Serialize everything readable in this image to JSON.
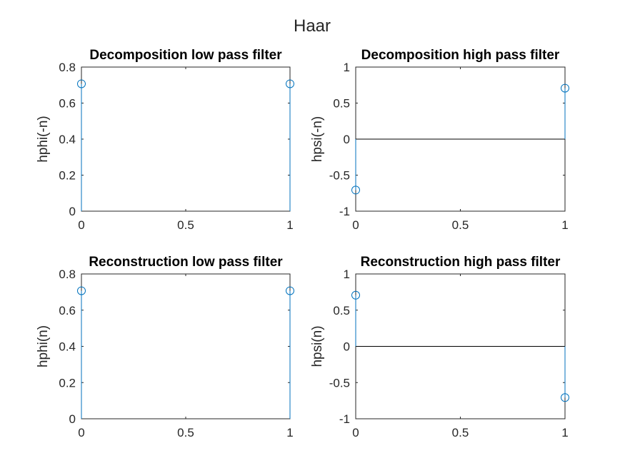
{
  "figure_title": "Haar",
  "colors": {
    "stem": "#0072BD",
    "axes": "#262626",
    "baseline": "#000000"
  },
  "chart_data": [
    {
      "type": "stem",
      "title": "Decomposition low pass filter",
      "xlabel": "",
      "ylabel": "hphi(-n)",
      "xlim": [
        0,
        1
      ],
      "ylim": [
        0,
        0.8
      ],
      "xticks": [
        0,
        0.5,
        1
      ],
      "xtick_labels": [
        "0",
        "0.5",
        "1"
      ],
      "yticks": [
        0,
        0.2,
        0.4,
        0.6,
        0.8
      ],
      "ytick_labels": [
        "0",
        "0.2",
        "0.4",
        "0.6",
        "0.8"
      ],
      "baseline": false,
      "series": [
        {
          "x": [
            0,
            1
          ],
          "values": [
            0.7071,
            0.7071
          ]
        }
      ]
    },
    {
      "type": "stem",
      "title": "Decomposition high pass filter",
      "xlabel": "",
      "ylabel": "hpsi(-n)",
      "xlim": [
        0,
        1
      ],
      "ylim": [
        -1,
        1
      ],
      "xticks": [
        0,
        0.5,
        1
      ],
      "xtick_labels": [
        "0",
        "0.5",
        "1"
      ],
      "yticks": [
        -1,
        -0.5,
        0,
        0.5,
        1
      ],
      "ytick_labels": [
        "-1",
        "-0.5",
        "0",
        "0.5",
        "1"
      ],
      "baseline": true,
      "series": [
        {
          "x": [
            0,
            1
          ],
          "values": [
            -0.7071,
            0.7071
          ]
        }
      ]
    },
    {
      "type": "stem",
      "title": "Reconstruction low pass filter",
      "xlabel": "",
      "ylabel": "hphi(n)",
      "xlim": [
        0,
        1
      ],
      "ylim": [
        0,
        0.8
      ],
      "xticks": [
        0,
        0.5,
        1
      ],
      "xtick_labels": [
        "0",
        "0.5",
        "1"
      ],
      "yticks": [
        0,
        0.2,
        0.4,
        0.6,
        0.8
      ],
      "ytick_labels": [
        "0",
        "0.2",
        "0.4",
        "0.6",
        "0.8"
      ],
      "baseline": false,
      "series": [
        {
          "x": [
            0,
            1
          ],
          "values": [
            0.7071,
            0.7071
          ]
        }
      ]
    },
    {
      "type": "stem",
      "title": "Reconstruction high pass filter",
      "xlabel": "",
      "ylabel": "hpsi(n)",
      "xlim": [
        0,
        1
      ],
      "ylim": [
        -1,
        1
      ],
      "xticks": [
        0,
        0.5,
        1
      ],
      "xtick_labels": [
        "0",
        "0.5",
        "1"
      ],
      "yticks": [
        -1,
        -0.5,
        0,
        0.5,
        1
      ],
      "ytick_labels": [
        "-1",
        "-0.5",
        "0",
        "0.5",
        "1"
      ],
      "baseline": true,
      "series": [
        {
          "x": [
            0,
            1
          ],
          "values": [
            0.7071,
            -0.7071
          ]
        }
      ]
    }
  ]
}
